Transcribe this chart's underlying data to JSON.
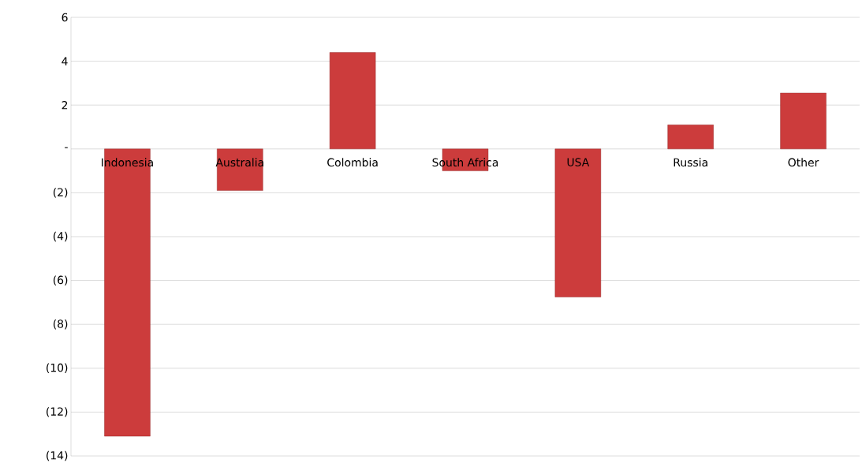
{
  "chart_data": {
    "type": "bar",
    "categories": [
      "Indonesia",
      "Australia",
      "Colombia",
      "South Africa",
      "USA",
      "Russia",
      "Other"
    ],
    "values": [
      -13.1,
      -1.9,
      4.4,
      -1.0,
      -6.75,
      1.1,
      2.55
    ],
    "color": "#cc3c3c",
    "ylim": [
      -14,
      6
    ],
    "yticks": [
      6,
      4,
      2,
      {
        "value": 0,
        "label": "-"
      },
      {
        "value": -2,
        "label": "(2)"
      },
      {
        "value": -4,
        "label": "(4)"
      },
      {
        "value": -6,
        "label": "(6)"
      },
      {
        "value": -8,
        "label": "(8)"
      },
      {
        "value": -10,
        "label": "(10)"
      },
      {
        "value": -12,
        "label": "(12)"
      },
      {
        "value": -14,
        "label": "(14)"
      }
    ],
    "grid": "y"
  }
}
